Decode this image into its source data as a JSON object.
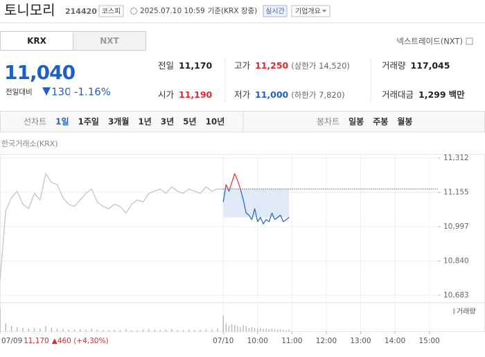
{
  "header": {
    "name": "토니모리",
    "code": "214420",
    "market": "코스피",
    "datetime": "2025.07.10 10:59",
    "basis": "기준(KRX 장중)",
    "realtime": "실시간",
    "company": "기업개요"
  },
  "tabs": [
    "KRX",
    "NXT"
  ],
  "nextrade": "넥스트레이드(NXT)",
  "quote": {
    "price": "11,040",
    "change_label": "전일대비",
    "change": "130",
    "change_pct": "-1.16%",
    "color": "#1f5fc8"
  },
  "stats": [
    {
      "label": "전일",
      "value": "11,170",
      "color": "#222222"
    },
    {
      "label": "고가",
      "value": "11,250",
      "note": "(상한가 14,520)",
      "color": "#e0282e"
    },
    {
      "label": "거래량",
      "value": "117,045",
      "color": "#222222"
    },
    {
      "label": "시가",
      "value": "11,190",
      "color": "#e0282e"
    },
    {
      "label": "저가",
      "value": "11,000",
      "note": "(하한가 7,820)",
      "color": "#1f5fc8"
    },
    {
      "label": "거래대금",
      "value": "1,299",
      "unit": "백만",
      "color": "#222222"
    }
  ],
  "periods": {
    "line_label": "선차트",
    "line": [
      "1일",
      "1주일",
      "3개월",
      "1년",
      "3년",
      "5년",
      "10년"
    ],
    "candle_label": "봉차트",
    "candle": [
      "일봉",
      "주봉",
      "월봉"
    ]
  },
  "chart_data": {
    "type": "line",
    "subtitle": "한국거래소(KRX)",
    "xlim": [
      0,
      765
    ],
    "xticks": [
      {
        "value": 0,
        "label": "07/09"
      },
      {
        "value": 390,
        "label": "07/10"
      },
      {
        "value": 450,
        "label": "10:00"
      },
      {
        "value": 510,
        "label": "11:00"
      },
      {
        "value": 570,
        "label": "12:00"
      },
      {
        "value": 630,
        "label": "13:00"
      },
      {
        "value": 690,
        "label": "14:00"
      },
      {
        "value": 750,
        "label": "15:00"
      }
    ],
    "ylim": [
      10651,
      11331
    ],
    "yticks": [
      {
        "value": 10683,
        "label": "10,683"
      },
      {
        "value": 10840,
        "label": "10,840"
      },
      {
        "value": 10997,
        "label": "10,997"
      },
      {
        "value": 11155,
        "label": "11,155"
      },
      {
        "value": 11312,
        "label": "11,312"
      }
    ],
    "grid": true,
    "reference": 11170,
    "prev_close": "11,170",
    "prev_change": "▲460 (+4,30%)",
    "series": [
      {
        "color": "#c4c4c4",
        "x": [
          0,
          10,
          20,
          30,
          40,
          50,
          60,
          70,
          80,
          90,
          100,
          110,
          120,
          130,
          140,
          150,
          160,
          170,
          180,
          190,
          200,
          210,
          220,
          230,
          240,
          250,
          260,
          270,
          280,
          290,
          300,
          310,
          320,
          330,
          340,
          350,
          360,
          370,
          380,
          390
        ],
        "values": [
          10750,
          11070,
          11130,
          11160,
          11100,
          11080,
          11150,
          11120,
          11240,
          11200,
          11190,
          11130,
          11100,
          11090,
          11120,
          11150,
          11170,
          11110,
          11090,
          11080,
          11100,
          11090,
          11060,
          11100,
          11120,
          11110,
          11150,
          11160,
          11170,
          11150,
          11180,
          11160,
          11150,
          11170,
          11160,
          11150,
          11180,
          11160,
          11170,
          11170
        ]
      },
      {
        "color": "#2d6bc5",
        "up_color": "#e8383d",
        "fill": "#dfe9f8",
        "x": [
          390,
          395,
          400,
          405,
          410,
          415,
          420,
          425,
          430,
          435,
          440,
          445,
          450,
          455,
          460,
          465,
          470,
          475,
          480,
          485,
          490,
          495,
          500,
          505
        ],
        "values": [
          11110,
          11190,
          11160,
          11200,
          11240,
          11210,
          11170,
          11120,
          11060,
          11050,
          11030,
          11080,
          11020,
          11040,
          11010,
          11030,
          11020,
          11060,
          11030,
          11040,
          11050,
          11020,
          11030,
          11040
        ]
      }
    ],
    "volume": {
      "label": "거래량",
      "ylim": [
        0,
        30000
      ],
      "color": "#b5b5b5",
      "series": [
        [
          26000,
          9000,
          6000,
          5000,
          4000,
          3000,
          4000,
          3000,
          6000,
          4000,
          3000,
          2500,
          2000,
          2000,
          2500,
          2000,
          3000,
          2000,
          1500,
          1500,
          2000,
          1500,
          2500,
          1500,
          1500,
          2000,
          2500,
          2000,
          1500,
          2000,
          2500,
          1500,
          1500,
          2000,
          1500,
          2000,
          2500,
          2000,
          3000,
          8000
        ],
        [
          18000,
          9000,
          6000,
          8000,
          7000,
          6000,
          5000,
          7000,
          6000,
          4000,
          5000,
          4000,
          3000,
          4000,
          3000,
          3000,
          2500,
          3000,
          2500,
          2000,
          2500,
          2000,
          1500,
          2000
        ]
      ]
    }
  }
}
